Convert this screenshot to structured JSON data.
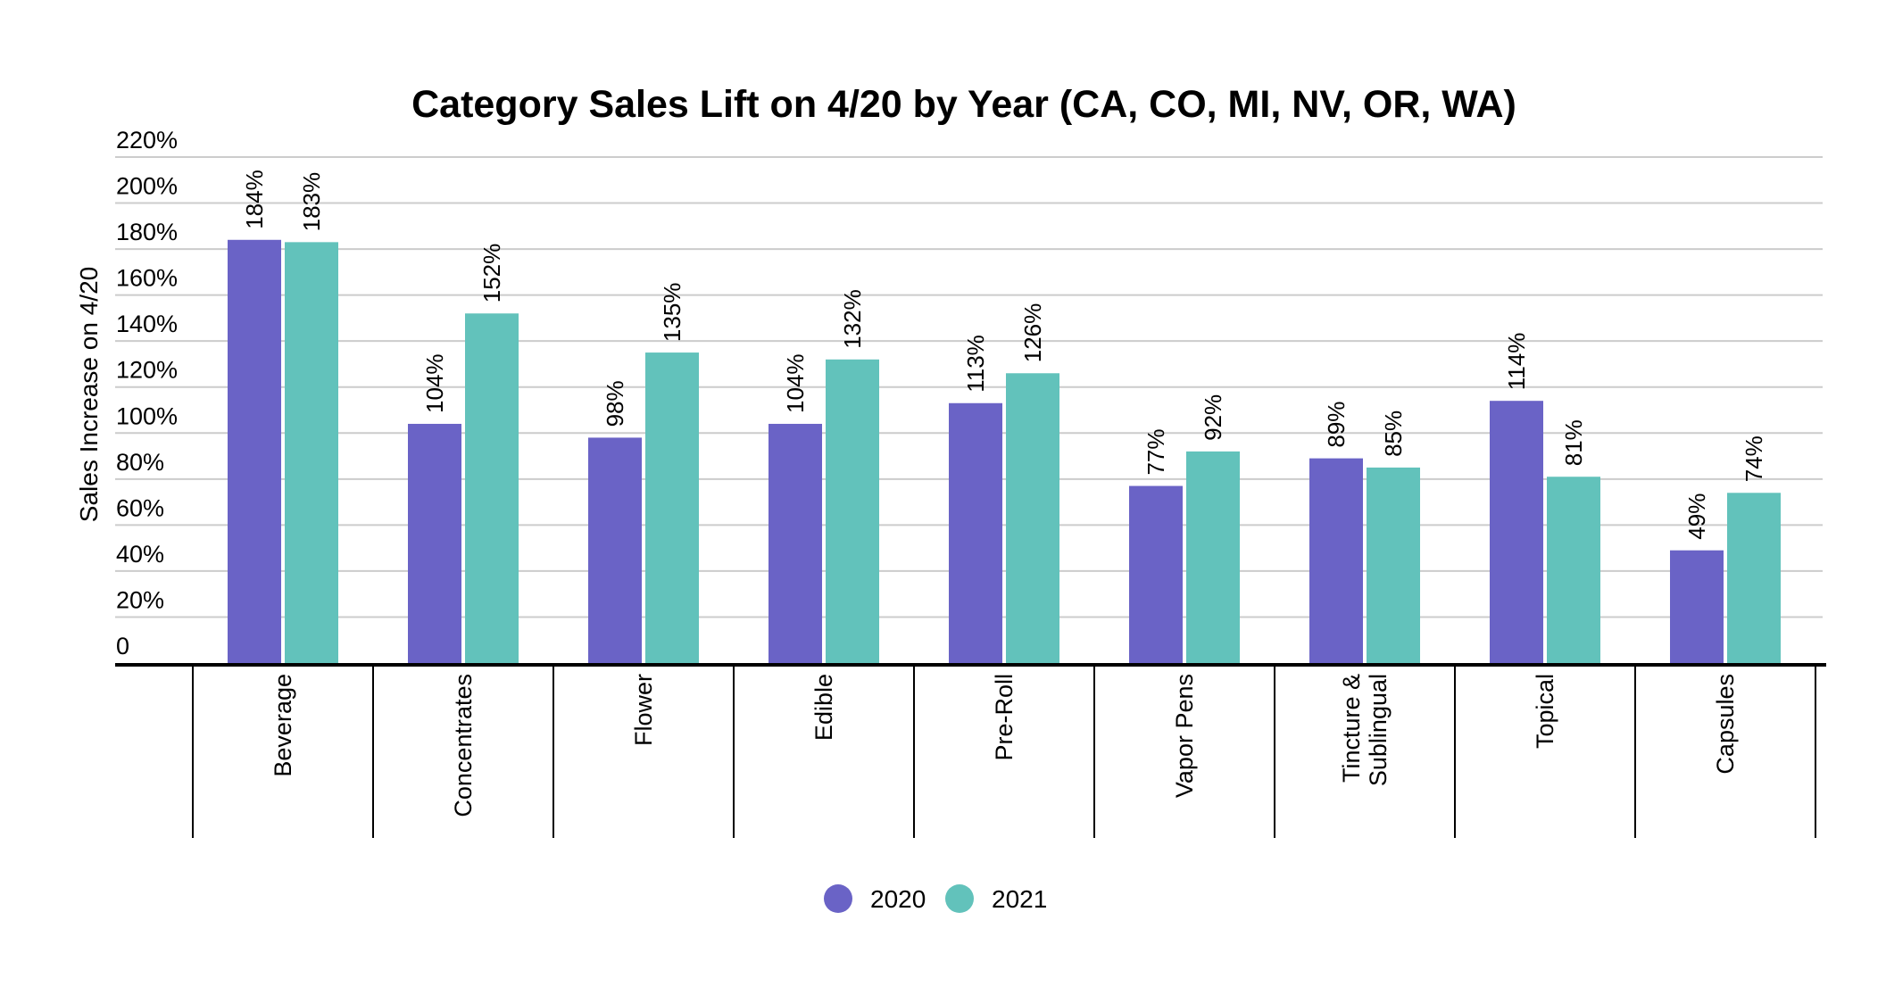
{
  "chart_data": {
    "type": "bar",
    "title": "Category Sales Lift on 4/20 by Year (CA, CO, MI, NV, OR, WA)",
    "xlabel": "",
    "ylabel": "Sales Increase on 4/20",
    "ylim": [
      0,
      220
    ],
    "yticks": [
      0,
      20,
      40,
      60,
      80,
      100,
      120,
      140,
      160,
      180,
      200,
      220
    ],
    "ytick_labels": [
      "0",
      "20%",
      "40%",
      "60%",
      "80%",
      "100%",
      "120%",
      "140%",
      "160%",
      "180%",
      "200%",
      "220%"
    ],
    "grid": true,
    "legend_position": "bottom-center",
    "categories": [
      [
        "Beverage"
      ],
      [
        "Concentrates"
      ],
      [
        "Flower"
      ],
      [
        "Edible"
      ],
      [
        "Pre-Roll"
      ],
      [
        "Vapor Pens"
      ],
      [
        "Tincture &",
        "Sublingual"
      ],
      [
        "Topical"
      ],
      [
        "Capsules"
      ]
    ],
    "series": [
      {
        "name": "2020",
        "color": "#6a63c6",
        "values": [
          184,
          104,
          98,
          104,
          113,
          77,
          89,
          114,
          49
        ],
        "labels": [
          "184%",
          "104%",
          "98%",
          "104%",
          "113%",
          "77%",
          "89%",
          "114%",
          "49%"
        ]
      },
      {
        "name": "2021",
        "color": "#62c2bb",
        "values": [
          183,
          152,
          135,
          132,
          126,
          92,
          85,
          81,
          74
        ],
        "labels": [
          "183%",
          "152%",
          "135%",
          "132%",
          "126%",
          "92%",
          "85%",
          "81%",
          "74%"
        ]
      }
    ]
  }
}
